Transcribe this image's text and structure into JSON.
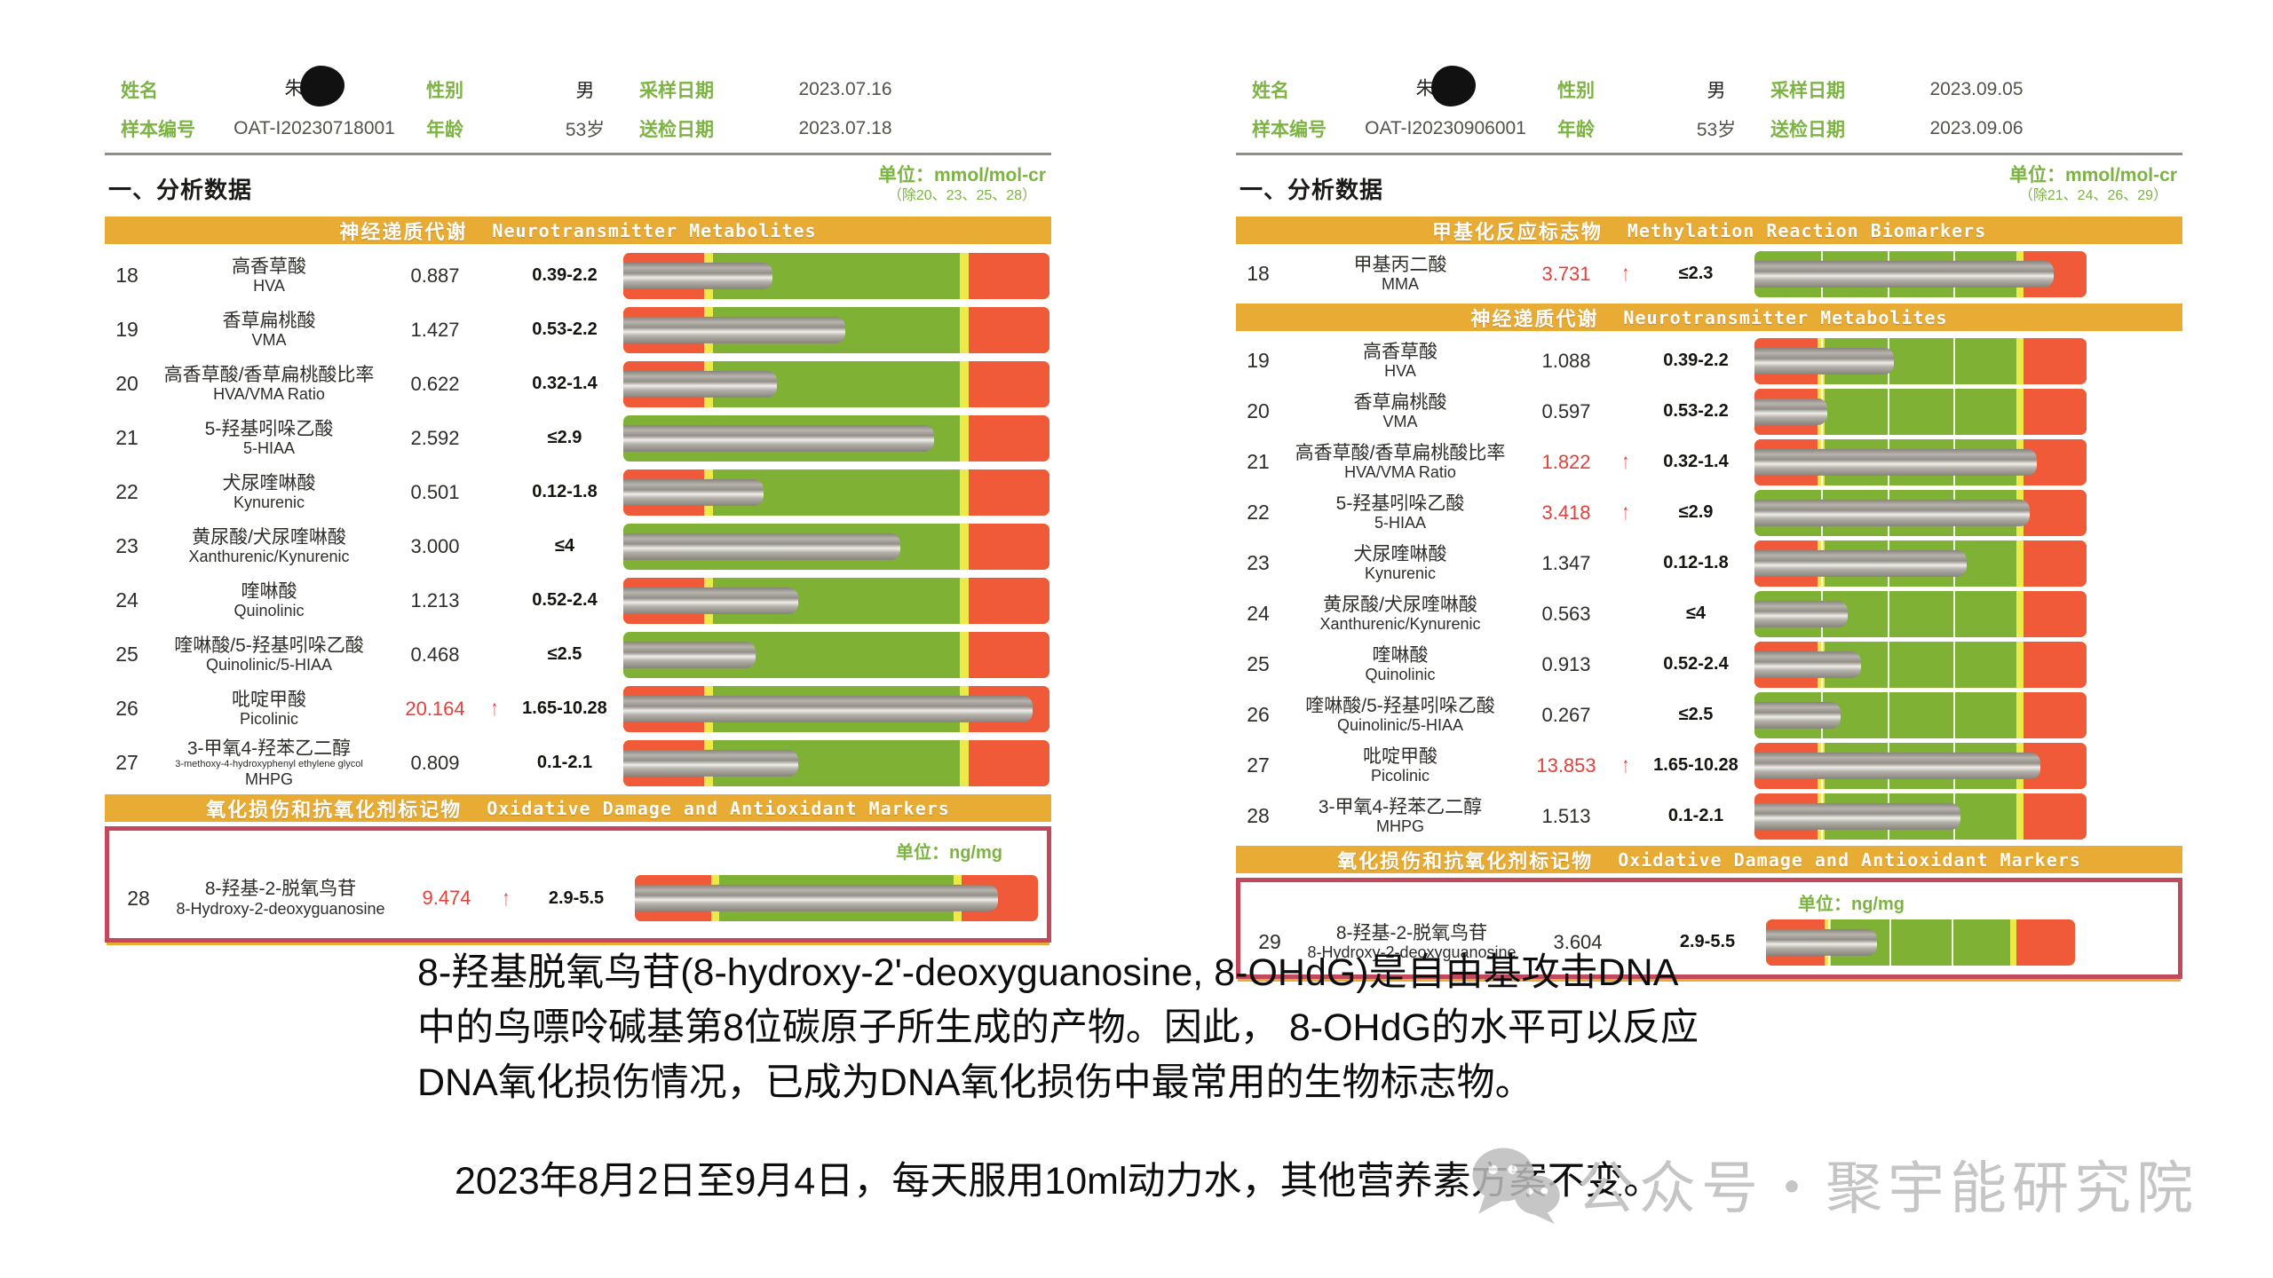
{
  "colors": {
    "gold": "#E8AB33",
    "bar_red": "#F15A38",
    "bar_green": "#7FB135",
    "bar_yellow": "#EDE94B",
    "box_red": "#C4485C",
    "label_green": "#7CB342",
    "abnormal_red": "#E2403A",
    "watermark_gray": "#C5C5C5"
  },
  "reports": [
    {
      "header": {
        "rows": [
          [
            {
              "label": "姓名",
              "value": "朱",
              "redacted": true
            },
            {
              "label": "性别",
              "value": "男"
            },
            {
              "label": "采样日期",
              "value": "2023.07.16"
            }
          ],
          [
            {
              "label": "样本编号",
              "value": "OAT-I20230718001"
            },
            {
              "label": "年龄",
              "value": "53岁"
            },
            {
              "label": "送检日期",
              "value": "2023.07.18"
            }
          ]
        ]
      },
      "analysis_title": "一、分析数据",
      "unit": "单位：mmol/mol-cr",
      "unit_note": "（除20、23、25、28）",
      "gridlines": false,
      "sections": [
        {
          "band_cn": "神经递质代谢",
          "band_en": "Neurotransmitter Metabolites",
          "rows": [
            {
              "num": "18",
              "cn": "高香草酸",
              "en": "HVA",
              "value": "0.887",
              "flag": "",
              "range": "0.39-2.2",
              "abnormal": false,
              "low_red": true,
              "fill": 0.35
            },
            {
              "num": "19",
              "cn": "香草扁桃酸",
              "en": "VMA",
              "value": "1.427",
              "flag": "",
              "range": "0.53-2.2",
              "abnormal": false,
              "low_red": true,
              "fill": 0.52
            },
            {
              "num": "20",
              "cn": "高香草酸/香草扁桃酸比率",
              "en": "HVA/VMA Ratio",
              "value": "0.622",
              "flag": "",
              "range": "0.32-1.4",
              "abnormal": false,
              "low_red": true,
              "fill": 0.36
            },
            {
              "num": "21",
              "cn": "5-羟基吲哚乙酸",
              "en": "5-HIAA",
              "value": "2.592",
              "flag": "",
              "range": "≤2.9",
              "abnormal": false,
              "low_red": false,
              "fill": 0.73
            },
            {
              "num": "22",
              "cn": "犬尿喹啉酸",
              "en": "Kynurenic",
              "value": "0.501",
              "flag": "",
              "range": "0.12-1.8",
              "abnormal": false,
              "low_red": true,
              "fill": 0.33
            },
            {
              "num": "23",
              "cn": "黄尿酸/犬尿喹啉酸",
              "en": "Xanthurenic/Kynurenic",
              "value": "3.000",
              "flag": "",
              "range": "≤4",
              "abnormal": false,
              "low_red": false,
              "fill": 0.65
            },
            {
              "num": "24",
              "cn": "喹啉酸",
              "en": "Quinolinic",
              "value": "1.213",
              "flag": "",
              "range": "0.52-2.4",
              "abnormal": false,
              "low_red": true,
              "fill": 0.41
            },
            {
              "num": "25",
              "cn": "喹啉酸/5-羟基吲哚乙酸",
              "en": "Quinolinic/5-HIAA",
              "value": "0.468",
              "flag": "",
              "range": "≤2.5",
              "abnormal": false,
              "low_red": false,
              "fill": 0.31
            },
            {
              "num": "26",
              "cn": "吡啶甲酸",
              "en": "Picolinic",
              "value": "20.164",
              "flag": "↑",
              "range": "1.65-10.28",
              "abnormal": true,
              "low_red": true,
              "fill": 0.96
            },
            {
              "num": "27",
              "cn": "3-甲氧4-羟苯乙二醇",
              "en_tiny": "3-methoxy-4-hydroxyphenyl ethylene glycol",
              "en": "MHPG",
              "value": "0.809",
              "flag": "",
              "range": "0.1-2.1",
              "abnormal": false,
              "low_red": true,
              "fill": 0.41
            }
          ]
        },
        {
          "band_cn": "氧化损伤和抗氧化剂标记物",
          "band_en": "Oxidative Damage and Antioxidant Markers",
          "unit": "单位：ng/mg",
          "boxed": true,
          "rows": [
            {
              "num": "28",
              "cn": "8-羟基-2-脱氧鸟苷",
              "en": "8-Hydroxy-2-deoxyguanosine",
              "value": "9.474",
              "flag": "↑",
              "range": "2.9-5.5",
              "abnormal": true,
              "low_red": true,
              "fill": 0.9
            }
          ]
        }
      ]
    },
    {
      "header": {
        "rows": [
          [
            {
              "label": "姓名",
              "value": "朱",
              "redacted": true
            },
            {
              "label": "性别",
              "value": "男"
            },
            {
              "label": "采样日期",
              "value": "2023.09.05"
            }
          ],
          [
            {
              "label": "样本编号",
              "value": "OAT-I20230906001"
            },
            {
              "label": "年龄",
              "value": "53岁"
            },
            {
              "label": "送检日期",
              "value": "2023.09.06"
            }
          ]
        ]
      },
      "analysis_title": "一、分析数据",
      "unit": "单位：mmol/mol-cr",
      "unit_note": "（除21、24、26、29）",
      "gridlines": true,
      "sections": [
        {
          "band_cn": "甲基化反应标志物",
          "band_en": "Methylation Reaction Biomarkers",
          "rows": [
            {
              "num": "18",
              "cn": "甲基丙二酸",
              "en": "MMA",
              "value": "3.731",
              "flag": "↑",
              "range": "≤2.3",
              "abnormal": true,
              "low_red": false,
              "fill": 0.9
            }
          ]
        },
        {
          "band_cn": "神经递质代谢",
          "band_en": "Neurotransmitter Metabolites",
          "rows": [
            {
              "num": "19",
              "cn": "高香草酸",
              "en": "HVA",
              "value": "1.088",
              "flag": "",
              "range": "0.39-2.2",
              "abnormal": false,
              "low_red": true,
              "fill": 0.42
            },
            {
              "num": "20",
              "cn": "香草扁桃酸",
              "en": "VMA",
              "value": "0.597",
              "flag": "",
              "range": "0.53-2.2",
              "abnormal": false,
              "low_red": true,
              "fill": 0.22
            },
            {
              "num": "21",
              "cn": "高香草酸/香草扁桃酸比率",
              "en": "HVA/VMA Ratio",
              "value": "1.822",
              "flag": "↑",
              "range": "0.32-1.4",
              "abnormal": true,
              "low_red": true,
              "fill": 0.85
            },
            {
              "num": "22",
              "cn": "5-羟基吲哚乙酸",
              "en": "5-HIAA",
              "value": "3.418",
              "flag": "↑",
              "range": "≤2.9",
              "abnormal": true,
              "low_red": false,
              "fill": 0.83
            },
            {
              "num": "23",
              "cn": "犬尿喹啉酸",
              "en": "Kynurenic",
              "value": "1.347",
              "flag": "",
              "range": "0.12-1.8",
              "abnormal": false,
              "low_red": true,
              "fill": 0.64
            },
            {
              "num": "24",
              "cn": "黄尿酸/犬尿喹啉酸",
              "en": "Xanthurenic/Kynurenic",
              "value": "0.563",
              "flag": "",
              "range": "≤4",
              "abnormal": false,
              "low_red": false,
              "fill": 0.28
            },
            {
              "num": "25",
              "cn": "喹啉酸",
              "en": "Quinolinic",
              "value": "0.913",
              "flag": "",
              "range": "0.52-2.4",
              "abnormal": false,
              "low_red": true,
              "fill": 0.32
            },
            {
              "num": "26",
              "cn": "喹啉酸/5-羟基吲哚乙酸",
              "en": "Quinolinic/5-HIAA",
              "value": "0.267",
              "flag": "",
              "range": "≤2.5",
              "abnormal": false,
              "low_red": false,
              "fill": 0.26
            },
            {
              "num": "27",
              "cn": "吡啶甲酸",
              "en": "Picolinic",
              "value": "13.853",
              "flag": "↑",
              "range": "1.65-10.28",
              "abnormal": true,
              "low_red": true,
              "fill": 0.86
            },
            {
              "num": "28",
              "cn": "3-甲氧4-羟苯乙二醇",
              "en": "MHPG",
              "value": "1.513",
              "flag": "",
              "range": "0.1-2.1",
              "abnormal": false,
              "low_red": true,
              "fill": 0.62
            }
          ]
        },
        {
          "band_cn": "氧化损伤和抗氧化剂标记物",
          "band_en": "Oxidative Damage and Antioxidant Markers",
          "unit": "单位：ng/mg",
          "boxed": true,
          "rows": [
            {
              "num": "29",
              "cn": "8-羟基-2-脱氧鸟苷",
              "en": "8-Hydroxy-2-deoxyguanosine",
              "value": "3.604",
              "flag": "",
              "range": "2.9-5.5",
              "abnormal": false,
              "low_red": true,
              "fill": 0.36
            }
          ]
        }
      ]
    }
  ],
  "footer": {
    "p1_lines": [
      "8-羟基脱氧鸟苷(8-hydroxy-2'-deoxyguanosine, 8-OHdG)是自由基攻击DNA",
      "中的鸟嘌呤碱基第8位碳原子所生成的产物。因此， 8-OHdG的水平可以反应",
      "DNA氧化损伤情况，已成为DNA氧化损伤中最常用的生物标志物。"
    ],
    "p2": "2023年8月2日至9月4日，每天服用10ml动力水，其他营养素方案不变。",
    "watermark_text": "公众号・聚宇能研究院"
  }
}
